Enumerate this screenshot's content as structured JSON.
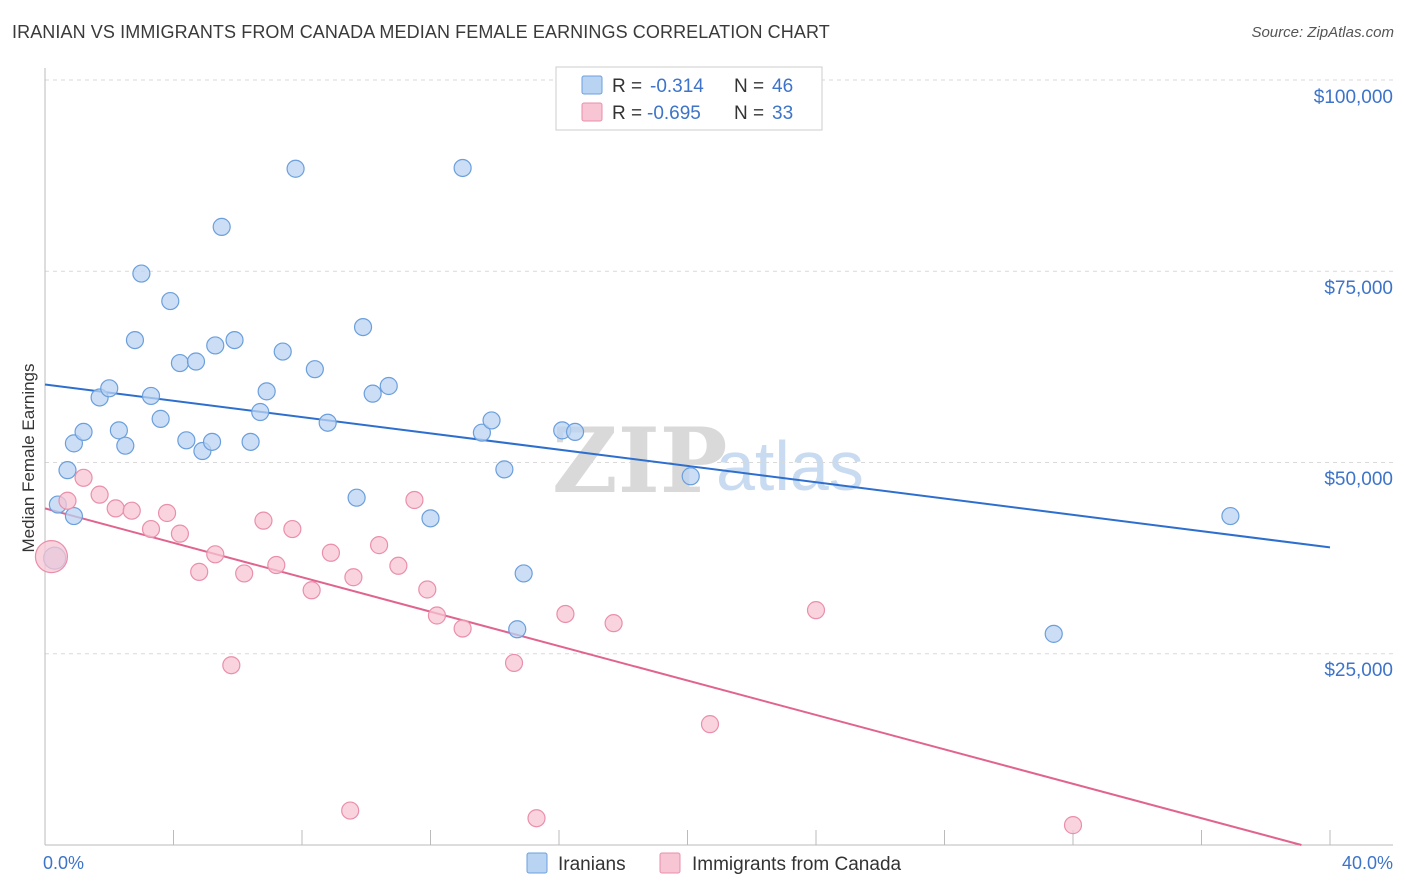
{
  "header": {
    "title": "IRANIAN VS IMMIGRANTS FROM CANADA MEDIAN FEMALE EARNINGS CORRELATION CHART",
    "source": "Source: ZipAtlas.com"
  },
  "watermark": {
    "part1": "ZIP",
    "part2": "atlas"
  },
  "colors": {
    "blue_fill": "#b9d3f2",
    "blue_stroke": "#6b9fdc",
    "blue_line": "#2e6fce",
    "pink_fill": "#f7c5d3",
    "pink_stroke": "#ea8fab",
    "pink_line": "#e0648f",
    "axis_text": "#3d74c9",
    "grid": "#d9d9d9"
  },
  "legend": {
    "rows": [
      {
        "r_label": "R =",
        "r_value": "-0.314",
        "n_label": "N =",
        "n_value": "46"
      },
      {
        "r_label": "R =",
        "r_value": "-0.695",
        "n_label": "N =",
        "n_value": "33"
      }
    ]
  },
  "bottom_legend": {
    "items": [
      {
        "label": "Iranians"
      },
      {
        "label": "Immigrants from Canada"
      }
    ]
  },
  "chart_data": {
    "type": "scatter",
    "title": "IRANIAN VS IMMIGRANTS FROM CANADA MEDIAN FEMALE EARNINGS CORRELATION CHART",
    "xlabel": "",
    "ylabel": "Median Female Earnings",
    "xlim": [
      0,
      40
    ],
    "ylim": [
      0,
      100000
    ],
    "x_tick_labels": [
      "0.0%",
      "40.0%"
    ],
    "y_tick_values": [
      25000,
      50000,
      75000,
      100000
    ],
    "y_tick_labels": [
      "$25,000",
      "$50,000",
      "$75,000",
      "$100,000"
    ],
    "grid": true,
    "series": [
      {
        "name": "Iranians",
        "r": -0.314,
        "n": 46,
        "trend": {
          "x": [
            0,
            40
          ],
          "y": 60200,
          "y_end": 38900
        },
        "trend_y": [
          60200,
          38900
        ],
        "points": [
          [
            0.3,
            37500
          ],
          [
            0.4,
            44500
          ],
          [
            0.7,
            49000
          ],
          [
            0.9,
            43000
          ],
          [
            0.9,
            52500
          ],
          [
            1.2,
            54000
          ],
          [
            1.7,
            58500
          ],
          [
            2.0,
            59700
          ],
          [
            2.3,
            54200
          ],
          [
            2.5,
            52200
          ],
          [
            2.8,
            66000
          ],
          [
            3.0,
            74700
          ],
          [
            3.3,
            58700
          ],
          [
            3.6,
            55700
          ],
          [
            3.9,
            71100
          ],
          [
            4.2,
            63000
          ],
          [
            4.4,
            52900
          ],
          [
            4.7,
            63200
          ],
          [
            4.9,
            51500
          ],
          [
            5.2,
            52700
          ],
          [
            5.3,
            65300
          ],
          [
            5.5,
            80800
          ],
          [
            5.9,
            66000
          ],
          [
            6.4,
            52700
          ],
          [
            6.7,
            56600
          ],
          [
            6.9,
            59300
          ],
          [
            7.4,
            64500
          ],
          [
            7.8,
            88400
          ],
          [
            8.4,
            62200
          ],
          [
            8.8,
            55200
          ],
          [
            9.7,
            45400
          ],
          [
            9.9,
            67700
          ],
          [
            10.2,
            59000
          ],
          [
            10.7,
            60000
          ],
          [
            12.0,
            42700
          ],
          [
            13.0,
            88500
          ],
          [
            13.6,
            53900
          ],
          [
            13.9,
            55500
          ],
          [
            14.3,
            49100
          ],
          [
            14.7,
            28200
          ],
          [
            14.9,
            35500
          ],
          [
            16.1,
            54200
          ],
          [
            16.5,
            54000
          ],
          [
            20.1,
            48200
          ],
          [
            31.4,
            27600
          ],
          [
            36.9,
            43000
          ]
        ]
      },
      {
        "name": "Immigrants from Canada",
        "r": -0.695,
        "n": 33,
        "trend_y": [
          44000,
          -1000
        ],
        "points": [
          [
            0.2,
            37700
          ],
          [
            0.7,
            45000
          ],
          [
            1.2,
            48000
          ],
          [
            1.7,
            45800
          ],
          [
            2.2,
            44000
          ],
          [
            2.7,
            43700
          ],
          [
            3.3,
            41300
          ],
          [
            3.8,
            43400
          ],
          [
            4.2,
            40700
          ],
          [
            4.8,
            35700
          ],
          [
            5.3,
            38000
          ],
          [
            5.8,
            23500
          ],
          [
            6.2,
            35500
          ],
          [
            6.8,
            42400
          ],
          [
            7.2,
            36600
          ],
          [
            7.7,
            41300
          ],
          [
            8.3,
            33300
          ],
          [
            8.9,
            38200
          ],
          [
            9.5,
            4500
          ],
          [
            9.6,
            35000
          ],
          [
            10.4,
            39200
          ],
          [
            11.0,
            36500
          ],
          [
            11.5,
            45100
          ],
          [
            11.9,
            33400
          ],
          [
            12.2,
            30000
          ],
          [
            13.0,
            28300
          ],
          [
            14.6,
            23800
          ],
          [
            15.3,
            3500
          ],
          [
            16.2,
            30200
          ],
          [
            17.7,
            29000
          ],
          [
            20.7,
            15800
          ],
          [
            24.0,
            30700
          ],
          [
            32.0,
            2600
          ]
        ]
      }
    ]
  }
}
